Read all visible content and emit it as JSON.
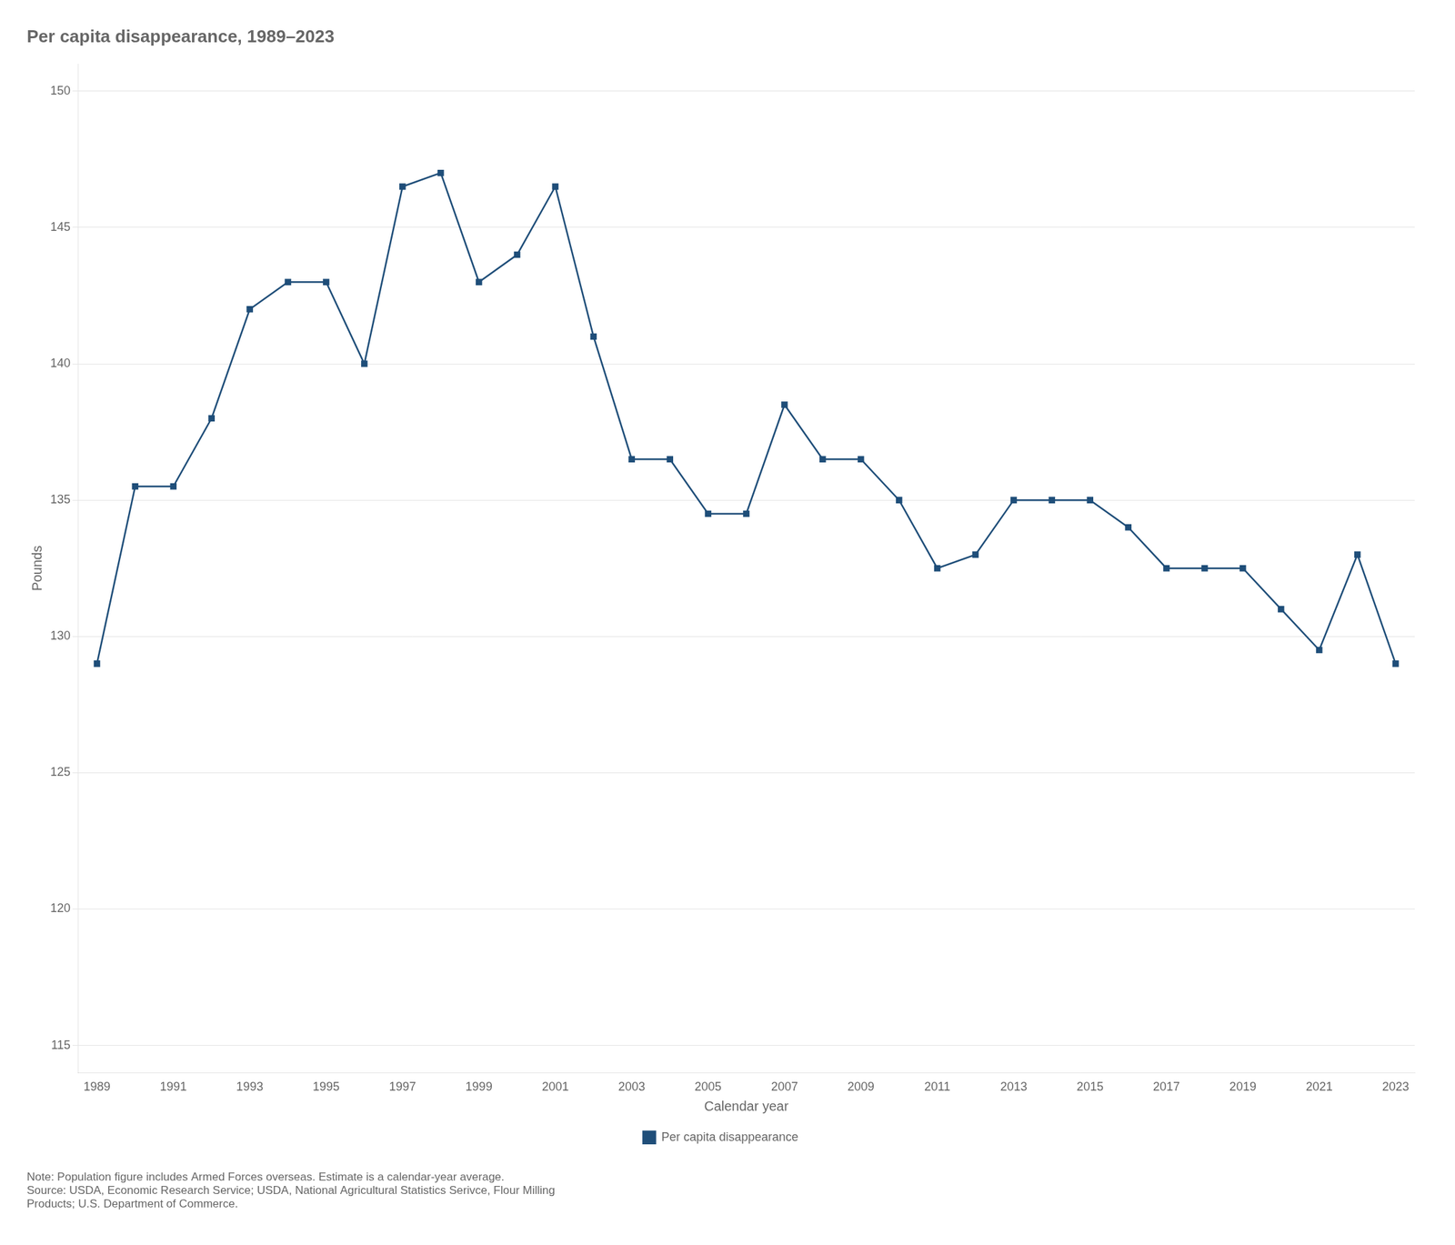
{
  "chart_data": {
    "type": "line",
    "title": "Per capita disappearance, 1989–2023",
    "xlabel": "Calendar year",
    "ylabel": "Pounds",
    "x": [
      1989,
      1990,
      1991,
      1992,
      1993,
      1994,
      1995,
      1996,
      1997,
      1998,
      1999,
      2000,
      2001,
      2002,
      2003,
      2004,
      2005,
      2006,
      2007,
      2008,
      2009,
      2010,
      2011,
      2012,
      2013,
      2014,
      2015,
      2016,
      2017,
      2018,
      2019,
      2020,
      2021,
      2022,
      2023
    ],
    "series": [
      {
        "name": "Per capita disappearance",
        "color": "#1F4E79",
        "marker": "square",
        "values": [
          129.0,
          135.5,
          135.5,
          138.0,
          142.0,
          143.0,
          143.0,
          140.0,
          146.5,
          147.0,
          143.0,
          144.0,
          146.5,
          141.0,
          136.5,
          136.5,
          134.5,
          134.5,
          138.5,
          136.5,
          136.5,
          135.0,
          132.5,
          133.0,
          135.0,
          135.0,
          135.0,
          134.0,
          132.5,
          132.5,
          132.5,
          131.0,
          129.5,
          133.0,
          129.0
        ]
      }
    ],
    "xlim": [
      1988.5,
      2023.5
    ],
    "xticks": [
      1989,
      1991,
      1993,
      1995,
      1997,
      1999,
      2001,
      2003,
      2005,
      2007,
      2009,
      2011,
      2013,
      2015,
      2017,
      2019,
      2021,
      2023
    ],
    "ylim": [
      114,
      151
    ],
    "yticks": [
      115,
      120,
      125,
      130,
      135,
      140,
      145,
      150
    ],
    "grid": "y",
    "legend": "bottom",
    "annotations": [
      "Note: Population figure includes Armed Forces overseas. Estimate is a calendar-year average.",
      "Source: USDA, Economic Research Service; USDA, National Agricultural Statistics Serivce, Flour Milling",
      "Products; U.S. Department of Commerce."
    ]
  }
}
